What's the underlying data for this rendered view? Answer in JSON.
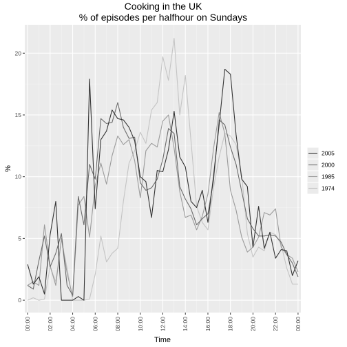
{
  "chart_data": {
    "type": "line",
    "title": "Cooking in the UK",
    "subtitle": "% of episodes per halfhour on Sundays",
    "xlabel": "Time",
    "ylabel": "%",
    "x_tick_labels": [
      "00:00",
      "02:00",
      "04:00",
      "06:00",
      "08:00",
      "10:00",
      "12:00",
      "14:00",
      "16:00",
      "18:00",
      "20:00",
      "22:00",
      "00:00"
    ],
    "y_ticks": [
      0,
      5,
      10,
      15,
      20
    ],
    "xlim": [
      -0.5,
      48.5
    ],
    "ylim": [
      -1.0,
      22.3
    ],
    "grid": true,
    "legend_position": "right",
    "series": [
      {
        "name": "2005",
        "color": "#333333",
        "values": [
          2.9,
          1.3,
          1.9,
          0.5,
          5.3,
          8.0,
          0.0,
          0.0,
          0.0,
          0.3,
          0.0,
          17.9,
          7.4,
          13.0,
          13.7,
          15.4,
          14.7,
          14.6,
          14.0,
          12.9,
          10.0,
          9.6,
          6.7,
          10.5,
          10.4,
          12.2,
          15.3,
          11.6,
          10.8,
          8.0,
          7.5,
          8.9,
          6.3,
          10.1,
          14.2,
          18.7,
          18.3,
          13.4,
          9.8,
          9.2,
          4.3,
          7.6,
          4.2,
          5.5,
          3.4,
          4.1,
          4.0,
          2.0,
          3.2
        ]
      },
      {
        "name": "2000",
        "color": "#6b6b6b",
        "values": [
          1.2,
          0.9,
          3.2,
          5.2,
          2.7,
          3.8,
          5.4,
          1.2,
          0.4,
          8.4,
          6.1,
          11.0,
          9.8,
          14.7,
          14.3,
          14.4,
          16.0,
          14.0,
          13.1,
          13.2,
          9.5,
          8.9,
          9.1,
          9.8,
          11.4,
          13.9,
          13.5,
          9.2,
          8.2,
          7.4,
          6.1,
          6.6,
          7.0,
          9.7,
          14.6,
          14.2,
          12.4,
          11.0,
          8.8,
          6.6,
          5.8,
          5.2,
          5.2,
          5.3,
          5.2,
          4.7,
          3.7,
          3.0,
          1.9
        ]
      },
      {
        "name": "1985",
        "color": "#9a9a9a",
        "values": [
          1.2,
          1.5,
          1.2,
          6.1,
          2.8,
          1.2,
          5.0,
          2.2,
          0.3,
          7.7,
          8.4,
          5.1,
          9.3,
          11.1,
          9.4,
          11.7,
          13.3,
          12.6,
          13.0,
          11.3,
          8.3,
          12.1,
          12.7,
          12.4,
          14.5,
          15.0,
          12.3,
          8.8,
          6.7,
          6.9,
          5.7,
          6.8,
          8.6,
          12.3,
          15.2,
          13.5,
          8.9,
          7.3,
          5.1,
          3.9,
          4.3,
          5.1,
          7.1,
          6.9,
          7.4,
          4.3,
          3.7,
          3.4,
          2.3
        ]
      },
      {
        "name": "1974",
        "color": "#c4c4c4",
        "values": [
          0.0,
          0.2,
          0.0,
          0.1,
          2.7,
          1.5,
          4.9,
          2.6,
          0.0,
          0.0,
          0.0,
          0.1,
          2.1,
          5.2,
          3.1,
          3.8,
          4.2,
          8.0,
          11.1,
          12.1,
          13.6,
          12.7,
          15.4,
          16.0,
          19.7,
          17.8,
          21.2,
          15.0,
          18.2,
          12.9,
          7.6,
          6.3,
          5.7,
          9.1,
          11.6,
          13.5,
          13.3,
          12.6,
          10.1,
          5.4,
          3.5,
          4.3,
          4.0,
          5.5,
          5.3,
          4.5,
          2.6,
          1.3,
          1.3
        ]
      }
    ]
  }
}
